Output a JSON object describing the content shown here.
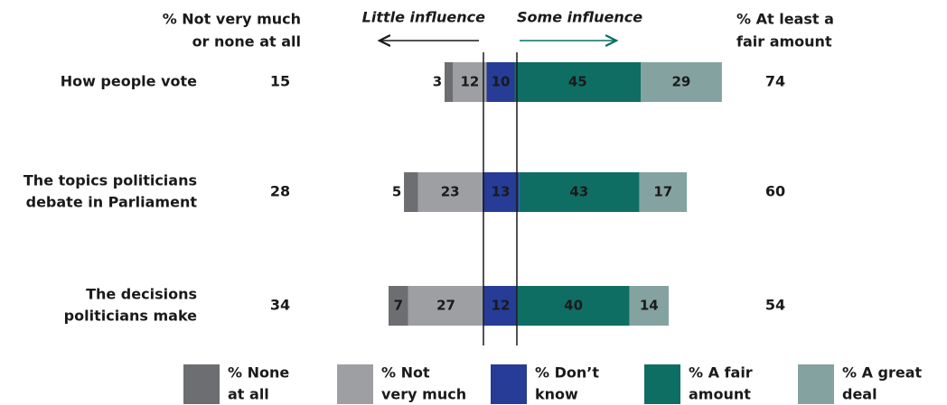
{
  "chart_data": {
    "type": "diverging-bar",
    "categories": [
      [
        "How people vote"
      ],
      [
        "The topics politicians",
        "debate in Parliament"
      ],
      [
        "The decisions",
        "politicians make"
      ]
    ],
    "negative_header": [
      "% Not very much",
      "or none at all"
    ],
    "positive_header": [
      "% At least a",
      "fair amount"
    ],
    "negative_annotation": "Little influence",
    "positive_annotation": "Some influence",
    "series": [
      {
        "name": [
          "% None",
          "at all"
        ],
        "color": "#6d6e71",
        "side": "negative",
        "values": [
          3,
          5,
          7
        ]
      },
      {
        "name": [
          "% Not",
          "very much"
        ],
        "color": "#9d9fa2",
        "side": "negative",
        "values": [
          12,
          23,
          27
        ]
      },
      {
        "name": [
          "% Don’t",
          "know"
        ],
        "color": "#263c96",
        "side": "center",
        "values": [
          10,
          13,
          12
        ]
      },
      {
        "name": [
          "% A fair",
          "amount"
        ],
        "color": "#0f6e63",
        "side": "positive",
        "values": [
          45,
          43,
          40
        ]
      },
      {
        "name": [
          "% A great",
          "deal"
        ],
        "color": "#84a3a0",
        "side": "positive",
        "values": [
          29,
          17,
          14
        ]
      }
    ],
    "net_negative": [
      15,
      28,
      34
    ],
    "net_positive": [
      74,
      60,
      54
    ],
    "accent_color": "#0f6e63"
  }
}
